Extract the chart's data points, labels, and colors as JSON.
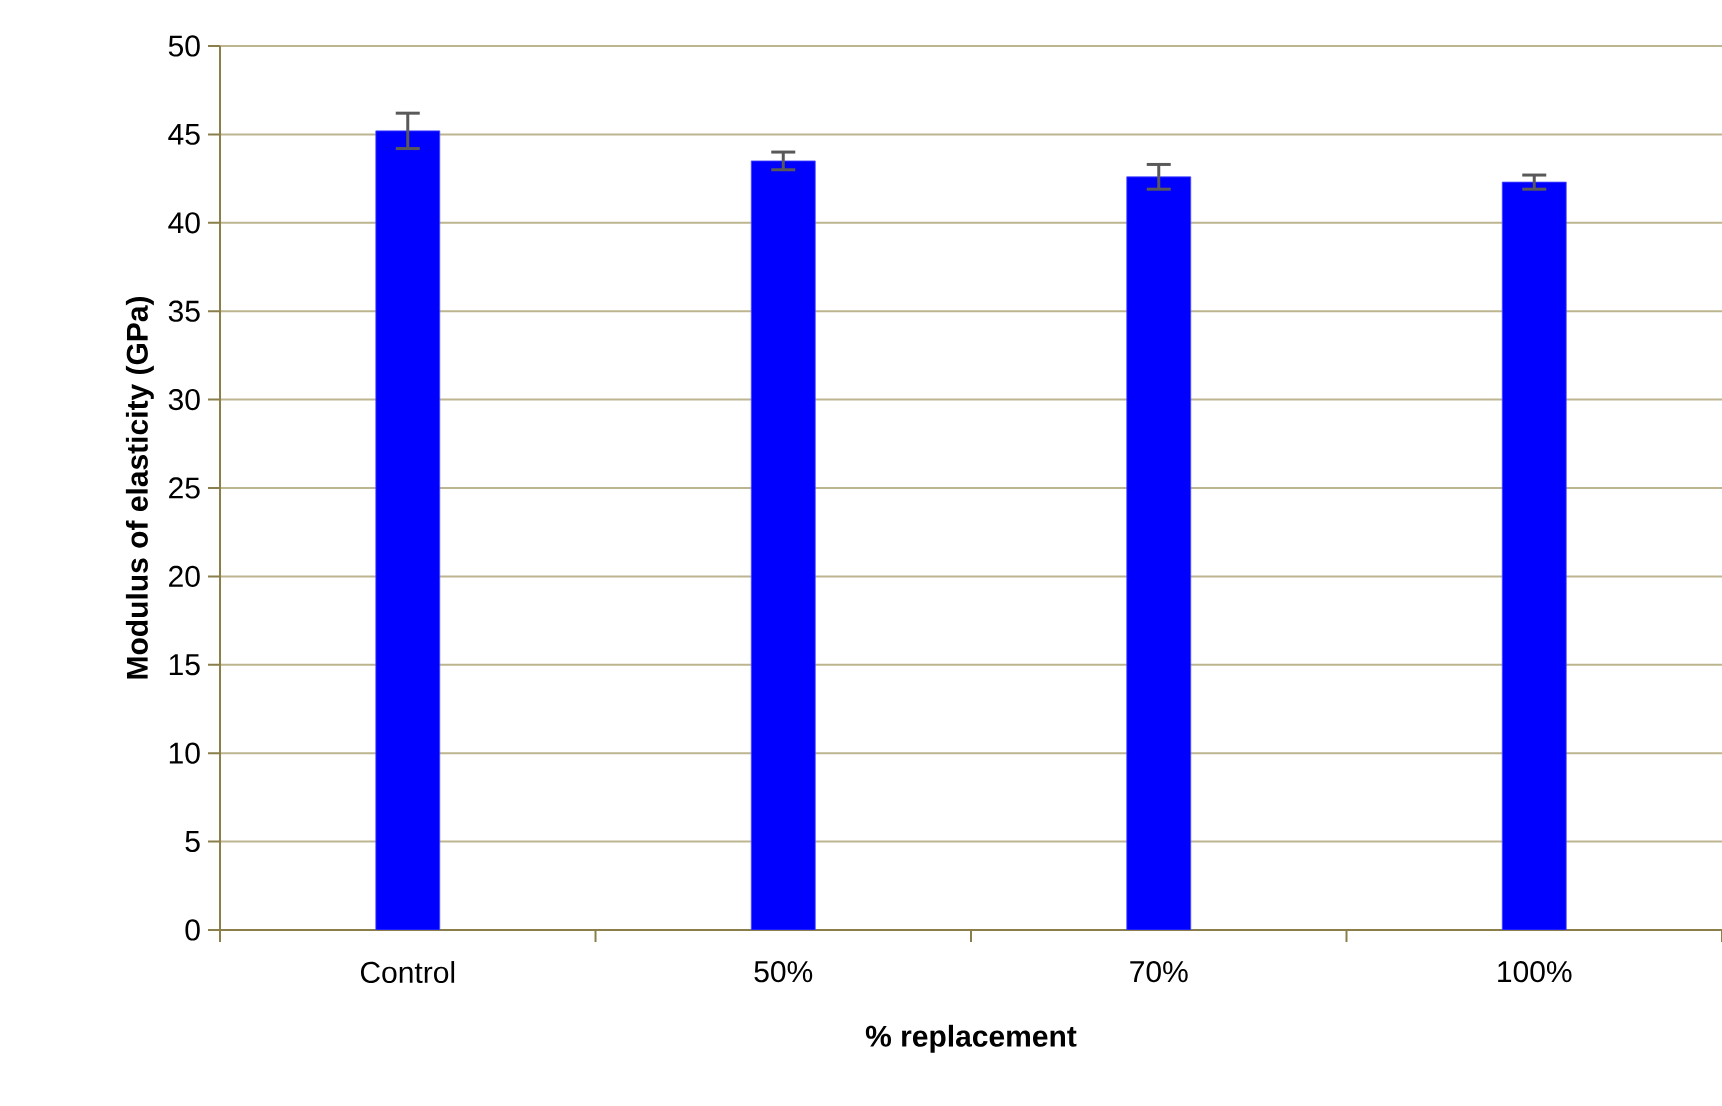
{
  "chart_data": {
    "type": "bar",
    "xlabel": "% replacement",
    "ylabel": "Modulus of elasticity (GPa)",
    "categories": [
      "Control",
      "50%",
      "70%",
      "100%"
    ],
    "values": [
      45.2,
      43.5,
      42.6,
      42.3
    ],
    "errors": [
      1.0,
      0.5,
      0.7,
      0.4
    ],
    "color": "#0000ff",
    "ylim": [
      0,
      50
    ],
    "yticks": [
      0,
      5,
      10,
      15,
      20,
      25,
      30,
      35,
      40,
      45,
      50
    ],
    "grid": "y"
  }
}
